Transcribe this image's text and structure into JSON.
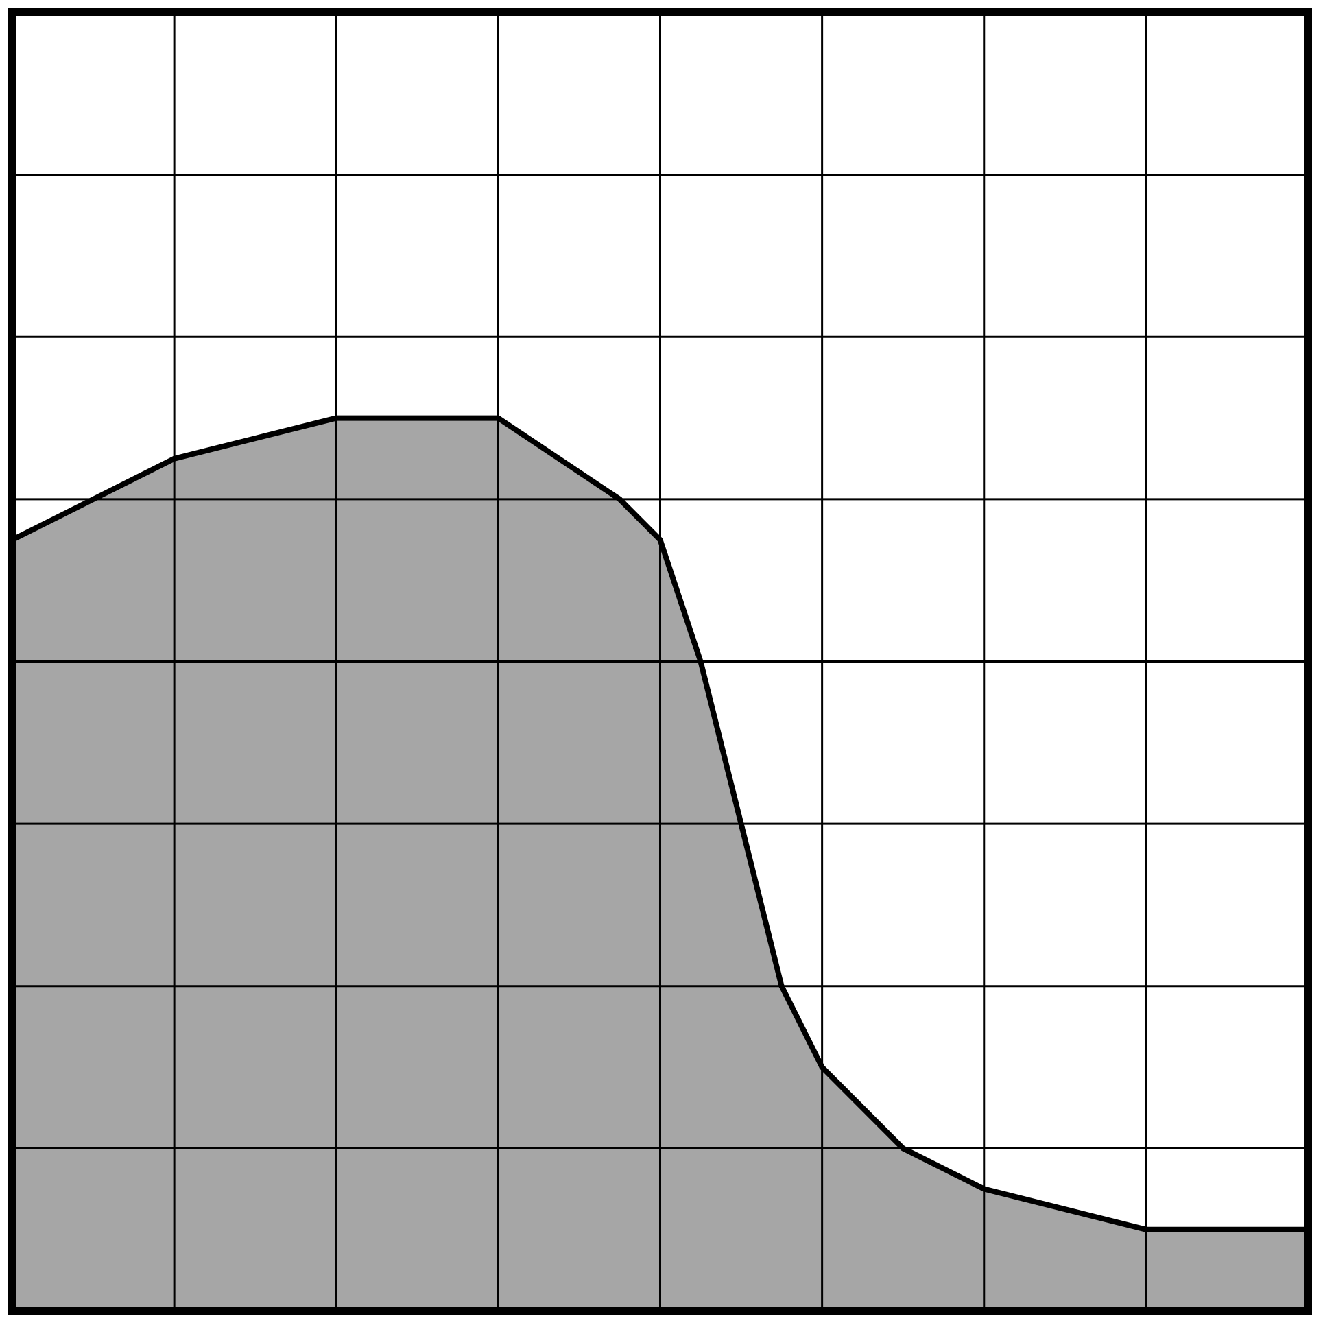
{
  "chart_data": {
    "type": "area",
    "title": "",
    "xlabel": "",
    "ylabel": "",
    "grid": true,
    "xlim": [
      0,
      8
    ],
    "ylim": [
      0,
      8
    ],
    "colors": {
      "fill": "#a6a6a6",
      "line": "#000000",
      "grid": "#000000",
      "background": "#ffffff"
    },
    "series": [
      {
        "x": [
          0,
          1,
          2,
          3,
          3.75,
          4,
          4.25,
          4.5,
          4.75,
          5,
          5.5,
          6,
          7,
          8
        ],
        "y": [
          4.75,
          5.25,
          5.5,
          5.5,
          5,
          4.75,
          4,
          3,
          2,
          1.5,
          1,
          0.75,
          0.5,
          0.5
        ]
      }
    ]
  }
}
